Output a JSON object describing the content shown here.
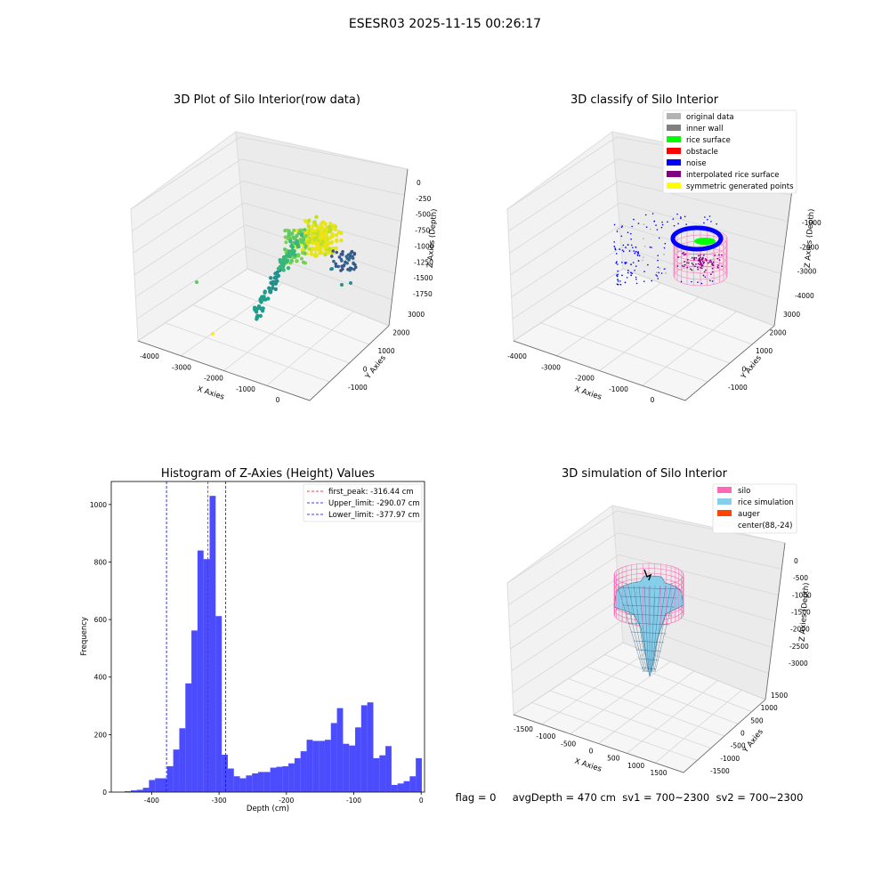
{
  "suptitle": "ESESR03 2025-11-15 00:26:17",
  "status_line": "flag = 0     avgDepth = 470 cm  sv1 = 700~2300  sv2 = 700~2300",
  "chart_data": [
    {
      "type": "scatter",
      "title": "3D Plot of Silo Interior(row data)",
      "xlabel": "X Axies",
      "ylabel": "Y Axies",
      "zlabel": "Z Axies (Depth)",
      "x_ticks": [
        "-4000",
        "-3000",
        "-2000",
        "-1000",
        "0"
      ],
      "y_ticks": [
        "-1000",
        "0",
        "1000",
        "2000",
        "3000"
      ],
      "z_ticks": [
        "0",
        "-250",
        "-500",
        "-750",
        "-1000",
        "-1250",
        "-1500",
        "-1750"
      ],
      "colormap": [
        "#440154",
        "#3b528b",
        "#21918c",
        "#5ec962",
        "#fde725"
      ]
    },
    {
      "type": "scatter",
      "title": "3D classify of Silo Interior",
      "xlabel": "X Axies",
      "ylabel": "Y Axies",
      "zlabel": "Z Axies (Depth)",
      "x_ticks": [
        "-4000",
        "-3000",
        "-2000",
        "-1000",
        "0"
      ],
      "y_ticks": [
        "-1000",
        "0",
        "1000",
        "2000",
        "3000"
      ],
      "z_ticks": [
        "-1000",
        "-2000",
        "-3000",
        "-4000"
      ],
      "legend": [
        {
          "label": "original data",
          "color": "#b3b3b3"
        },
        {
          "label": "inner wall",
          "color": "#808080"
        },
        {
          "label": "rice surface",
          "color": "#00ff00"
        },
        {
          "label": "obstacle",
          "color": "#ff0000"
        },
        {
          "label": "noise",
          "color": "#0000ff"
        },
        {
          "label": "interpolated rice surface",
          "color": "#800080"
        },
        {
          "label": "symmetric generated points",
          "color": "#ffff00"
        }
      ],
      "legend_placement": "top-right"
    },
    {
      "type": "bar",
      "title": "Histogram of Z-Axies (Height) Values",
      "xlabel": "Depth (cm)",
      "ylabel": "Frequency",
      "xlim": [
        -460,
        5
      ],
      "ylim": [
        0,
        1080
      ],
      "x_ticks": [
        -400,
        -300,
        -200,
        -100,
        0
      ],
      "y_ticks": [
        0,
        200,
        400,
        600,
        800,
        1000
      ],
      "bin_start": -440,
      "bin_width": 9,
      "values": [
        3,
        6,
        8,
        15,
        42,
        48,
        48,
        90,
        148,
        222,
        378,
        562,
        840,
        810,
        1030,
        612,
        130,
        82,
        55,
        48,
        58,
        65,
        70,
        70,
        85,
        88,
        90,
        100,
        118,
        142,
        182,
        178,
        178,
        182,
        240,
        292,
        168,
        162,
        225,
        302,
        312,
        118,
        128,
        160,
        25,
        30,
        38,
        55,
        118
      ],
      "bar_color": "#0000ff",
      "lines": [
        {
          "label": "first_peak: -316.44 cm",
          "x": -316.44,
          "color": "#ff0000"
        },
        {
          "label": "Upper_limit: -290.07 cm",
          "x": -290.07,
          "color": "#0000ff"
        },
        {
          "label": "Lower_limit: -377.97 cm",
          "x": -377.97,
          "color": "#0000ff"
        }
      ],
      "legend_placement": "top-right"
    },
    {
      "type": "surface",
      "title": "3D simulation of Silo Interior",
      "xlabel": "X Axies",
      "ylabel": "Y Axies",
      "zlabel": "Z Axies (Depth)",
      "x_ticks": [
        "-1500",
        "-1000",
        "-500",
        "0",
        "500",
        "1000",
        "1500"
      ],
      "y_ticks": [
        "-1500",
        "-1000",
        "-500",
        "0",
        "500",
        "1000",
        "1500"
      ],
      "z_ticks": [
        "0",
        "-500",
        "-1000",
        "-1500",
        "-2000",
        "-2500",
        "-3000"
      ],
      "legend": [
        {
          "label": "silo",
          "color": "#ff69b4"
        },
        {
          "label": "rice simulation",
          "color": "#87ceeb"
        },
        {
          "label": "auger",
          "color": "#ff4500"
        },
        {
          "label": "center(88,-24)",
          "color": "#ffffff"
        }
      ],
      "legend_placement": "top-right"
    }
  ]
}
